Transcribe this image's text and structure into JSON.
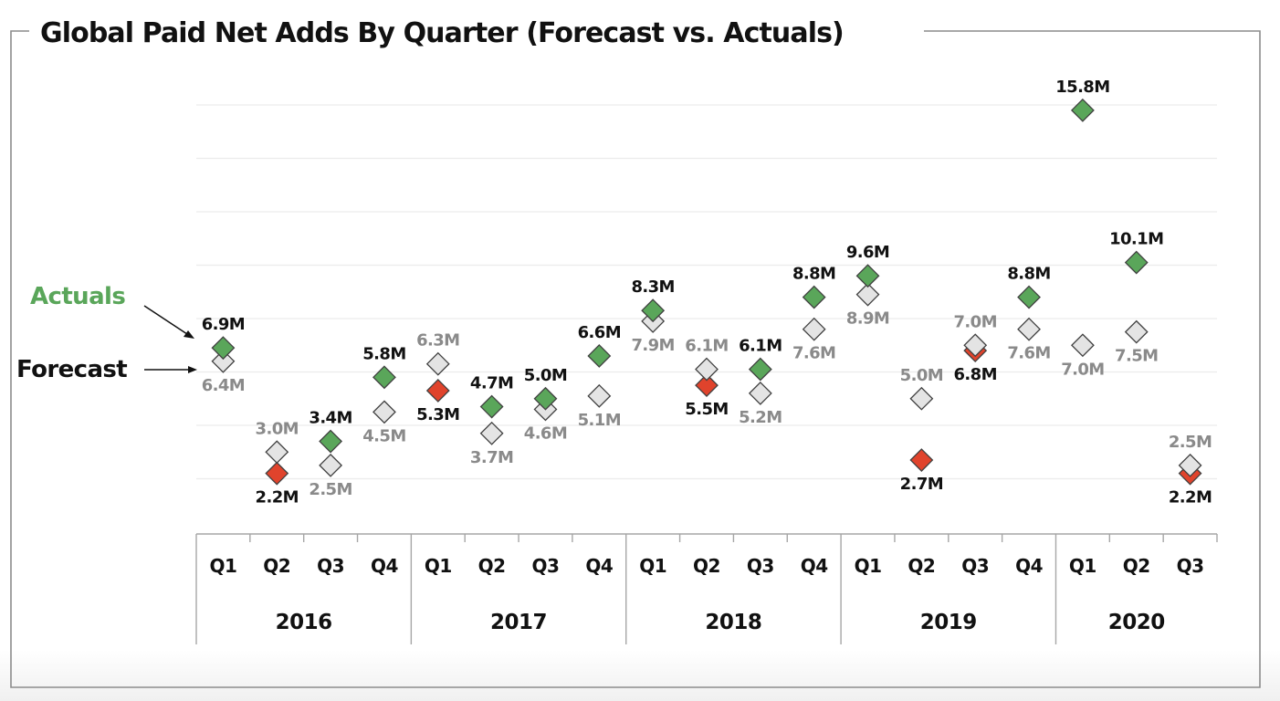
{
  "chart_data": {
    "type": "scatter",
    "title": "Global Paid Net Adds By Quarter (Forecast vs. Actuals)",
    "xlabel": "",
    "ylabel": "",
    "ylim": [
      0,
      16
    ],
    "grid": true,
    "y_gridline_step": 2,
    "legend": {
      "placement": "left",
      "items": [
        {
          "name": "Actuals",
          "color": "#5aa65a"
        },
        {
          "name": "Forecast",
          "color": "#111111"
        }
      ]
    },
    "colors": {
      "actual_beat": "#5aa65a",
      "actual_miss": "#e0432c",
      "forecast": "#e4e4e4",
      "marker_border": "#404040",
      "forecast_label": "#8a8a8a",
      "actual_label": "#111111"
    },
    "years": [
      {
        "label": "2016",
        "quarters": 4
      },
      {
        "label": "2017",
        "quarters": 4
      },
      {
        "label": "2018",
        "quarters": 4
      },
      {
        "label": "2019",
        "quarters": 4
      },
      {
        "label": "2020",
        "quarters": 3
      }
    ],
    "categories": [
      "Q1",
      "Q2",
      "Q3",
      "Q4",
      "Q1",
      "Q2",
      "Q3",
      "Q4",
      "Q1",
      "Q2",
      "Q3",
      "Q4",
      "Q1",
      "Q2",
      "Q3",
      "Q4",
      "Q1",
      "Q2",
      "Q3"
    ],
    "series": [
      {
        "name": "Actuals",
        "unit": "M",
        "values": [
          6.9,
          2.2,
          3.4,
          5.8,
          5.3,
          4.7,
          5.0,
          6.6,
          8.3,
          5.5,
          6.1,
          8.8,
          9.6,
          2.7,
          6.8,
          8.8,
          15.8,
          10.1,
          2.2
        ],
        "labels": [
          "6.9M",
          "2.2M",
          "3.4M",
          "5.8M",
          "5.3M",
          "4.7M",
          "5.0M",
          "6.6M",
          "8.3M",
          "5.5M",
          "6.1M",
          "8.8M",
          "9.6M",
          "2.7M",
          "6.8M",
          "8.8M",
          "15.8M",
          "10.1M",
          "2.2M"
        ],
        "label_position": [
          "above",
          "below",
          "above",
          "above",
          "below",
          "above",
          "above",
          "above",
          "above",
          "below",
          "above",
          "above",
          "above",
          "below",
          "below",
          "above",
          "above",
          "above",
          "below"
        ]
      },
      {
        "name": "Forecast",
        "unit": "M",
        "values": [
          6.4,
          3.0,
          2.5,
          4.5,
          6.3,
          3.7,
          4.6,
          5.1,
          7.9,
          6.1,
          5.2,
          7.6,
          8.9,
          5.0,
          7.0,
          7.6,
          7.0,
          7.5,
          2.5
        ],
        "labels": [
          "6.4M",
          "3.0M",
          "2.5M",
          "4.5M",
          "6.3M",
          "3.7M",
          "4.6M",
          "5.1M",
          "7.9M",
          "6.1M",
          "5.2M",
          "7.6M",
          "8.9M",
          "5.0M",
          "7.0M",
          "7.6M",
          "7.0M",
          "7.5M",
          "2.5M"
        ],
        "label_position": [
          "below",
          "above",
          "below",
          "below",
          "above",
          "below",
          "below",
          "below",
          "below",
          "above",
          "below",
          "below",
          "below",
          "above",
          "above",
          "below",
          "below",
          "below",
          "above"
        ]
      }
    ]
  }
}
